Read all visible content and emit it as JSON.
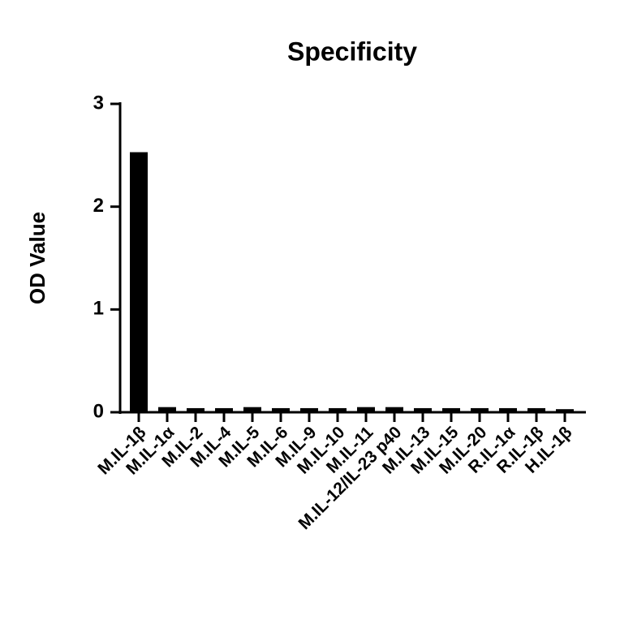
{
  "chart_data": {
    "type": "bar",
    "title": "Specificity",
    "y_label": "OD Value",
    "categories": [
      "M.IL-1β",
      "M.IL-1α",
      "M.IL-2",
      "M.IL-4",
      "M.IL-5",
      "M.IL-6",
      "M.IL-9",
      "M.IL-10",
      "M.IL-11",
      "M.IL-12/IL-23 p40",
      "M.IL-13",
      "M.IL-15",
      "M.IL-20",
      "R.IL-1α",
      "R.IL-1β",
      "H.IL-1β"
    ],
    "values": [
      2.53,
      0.05,
      0.04,
      0.04,
      0.05,
      0.04,
      0.04,
      0.04,
      0.05,
      0.05,
      0.04,
      0.04,
      0.04,
      0.04,
      0.04,
      0.03
    ],
    "color": "#000000",
    "ylim": [
      0,
      3
    ],
    "yticks": [
      0,
      1,
      2,
      3
    ],
    "grid": false
  }
}
